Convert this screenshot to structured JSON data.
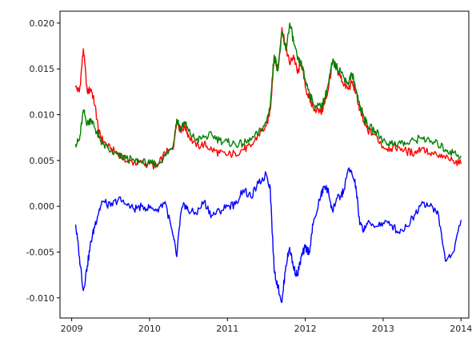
{
  "chart_data": {
    "type": "line",
    "title": "",
    "xlabel": "",
    "ylabel": "",
    "xlim": [
      2008.85,
      2014.1
    ],
    "ylim": [
      -0.0122,
      0.0213
    ],
    "grid": false,
    "legend": "none",
    "x_ticks": [
      2009,
      2010,
      2011,
      2012,
      2013,
      2014
    ],
    "x_tick_labels": [
      "2009",
      "2010",
      "2011",
      "2012",
      "2013",
      "2014"
    ],
    "y_ticks": [
      -0.01,
      -0.005,
      0.0,
      0.005,
      0.01,
      0.015,
      0.02
    ],
    "y_tick_labels": [
      "-0.010",
      "-0.005",
      "0.000",
      "0.005",
      "0.010",
      "0.015",
      "0.020"
    ],
    "series": [
      {
        "color": "#ff0000",
        "x": [
          2009.05,
          2009.1,
          2009.15,
          2009.2,
          2009.25,
          2009.3,
          2009.35,
          2009.4,
          2009.5,
          2009.6,
          2009.7,
          2009.8,
          2009.9,
          2010.0,
          2010.1,
          2010.2,
          2010.3,
          2010.35,
          2010.4,
          2010.45,
          2010.5,
          2010.6,
          2010.7,
          2010.8,
          2010.9,
          2011.0,
          2011.1,
          2011.2,
          2011.3,
          2011.4,
          2011.5,
          2011.55,
          2011.6,
          2011.65,
          2011.7,
          2011.75,
          2011.8,
          2011.85,
          2011.9,
          2011.95,
          2012.0,
          2012.05,
          2012.1,
          2012.2,
          2012.25,
          2012.3,
          2012.35,
          2012.4,
          2012.45,
          2012.5,
          2012.55,
          2012.6,
          2012.65,
          2012.7,
          2012.75,
          2012.8,
          2012.9,
          2013.0,
          2013.1,
          2013.2,
          2013.3,
          2013.4,
          2013.5,
          2013.6,
          2013.7,
          2013.8,
          2013.9,
          2014.0
        ],
        "values": [
          0.013,
          0.0125,
          0.0172,
          0.0125,
          0.0128,
          0.011,
          0.008,
          0.0072,
          0.0062,
          0.0058,
          0.0049,
          0.0048,
          0.0047,
          0.0046,
          0.0043,
          0.0058,
          0.0062,
          0.0095,
          0.0082,
          0.0088,
          0.0078,
          0.0065,
          0.0068,
          0.0062,
          0.0058,
          0.0056,
          0.0058,
          0.0062,
          0.0065,
          0.0078,
          0.0088,
          0.0105,
          0.0162,
          0.015,
          0.0195,
          0.0175,
          0.0155,
          0.0165,
          0.0145,
          0.0158,
          0.013,
          0.0118,
          0.0108,
          0.0102,
          0.0112,
          0.013,
          0.0158,
          0.015,
          0.0142,
          0.0133,
          0.0128,
          0.0135,
          0.0125,
          0.0105,
          0.0092,
          0.0083,
          0.0078,
          0.0065,
          0.0063,
          0.0065,
          0.006,
          0.0058,
          0.0064,
          0.0058,
          0.0055,
          0.0052,
          0.005,
          0.0046
        ]
      },
      {
        "color": "#008000",
        "x": [
          2009.05,
          2009.1,
          2009.15,
          2009.2,
          2009.25,
          2009.3,
          2009.35,
          2009.4,
          2009.5,
          2009.6,
          2009.7,
          2009.8,
          2009.9,
          2010.0,
          2010.1,
          2010.2,
          2010.3,
          2010.35,
          2010.4,
          2010.45,
          2010.5,
          2010.6,
          2010.7,
          2010.8,
          2010.9,
          2011.0,
          2011.1,
          2011.2,
          2011.3,
          2011.4,
          2011.5,
          2011.55,
          2011.6,
          2011.65,
          2011.7,
          2011.75,
          2011.8,
          2011.85,
          2011.9,
          2011.95,
          2012.0,
          2012.05,
          2012.1,
          2012.2,
          2012.25,
          2012.3,
          2012.35,
          2012.4,
          2012.45,
          2012.5,
          2012.55,
          2012.6,
          2012.65,
          2012.7,
          2012.75,
          2012.8,
          2012.9,
          2013.0,
          2013.1,
          2013.2,
          2013.3,
          2013.4,
          2013.5,
          2013.6,
          2013.7,
          2013.8,
          2013.9,
          2014.0
        ],
        "values": [
          0.0068,
          0.0072,
          0.0105,
          0.009,
          0.0095,
          0.0085,
          0.0075,
          0.0068,
          0.006,
          0.0055,
          0.0052,
          0.005,
          0.0048,
          0.0047,
          0.0046,
          0.0055,
          0.0065,
          0.0095,
          0.0085,
          0.0092,
          0.0082,
          0.0072,
          0.0075,
          0.0078,
          0.0072,
          0.007,
          0.0068,
          0.0068,
          0.0072,
          0.008,
          0.0092,
          0.011,
          0.0165,
          0.0148,
          0.019,
          0.017,
          0.02,
          0.018,
          0.016,
          0.0155,
          0.0138,
          0.0125,
          0.0112,
          0.0108,
          0.0118,
          0.0135,
          0.0158,
          0.0152,
          0.0148,
          0.014,
          0.0135,
          0.0145,
          0.0128,
          0.011,
          0.0098,
          0.0088,
          0.0082,
          0.0072,
          0.0068,
          0.007,
          0.0068,
          0.0072,
          0.0075,
          0.007,
          0.0068,
          0.0062,
          0.0058,
          0.0055
        ]
      },
      {
        "color": "#0000ff",
        "x": [
          2009.05,
          2009.1,
          2009.15,
          2009.2,
          2009.25,
          2009.3,
          2009.35,
          2009.4,
          2009.5,
          2009.6,
          2009.7,
          2009.8,
          2009.9,
          2010.0,
          2010.1,
          2010.2,
          2010.3,
          2010.35,
          2010.4,
          2010.45,
          2010.5,
          2010.6,
          2010.7,
          2010.8,
          2010.9,
          2011.0,
          2011.1,
          2011.2,
          2011.3,
          2011.4,
          2011.5,
          2011.55,
          2011.6,
          2011.65,
          2011.7,
          2011.75,
          2011.8,
          2011.85,
          2011.9,
          2011.95,
          2012.0,
          2012.05,
          2012.1,
          2012.2,
          2012.25,
          2012.3,
          2012.35,
          2012.4,
          2012.45,
          2012.5,
          2012.55,
          2012.6,
          2012.65,
          2012.7,
          2012.75,
          2012.8,
          2012.9,
          2013.0,
          2013.1,
          2013.2,
          2013.3,
          2013.4,
          2013.5,
          2013.6,
          2013.7,
          2013.8,
          2013.9,
          2014.0
        ],
        "values": [
          -0.002,
          -0.0055,
          -0.0092,
          -0.0065,
          -0.0038,
          -0.002,
          -0.0005,
          0.0005,
          0.0,
          0.0008,
          0.0002,
          -0.0003,
          0.0,
          -0.0002,
          -0.0003,
          0.0005,
          -0.0032,
          -0.0055,
          -0.0008,
          0.0002,
          -0.0005,
          -0.0008,
          0.0005,
          -0.001,
          -0.0005,
          0.0,
          0.0002,
          0.0018,
          0.001,
          0.0025,
          0.0035,
          0.002,
          -0.007,
          -0.0088,
          -0.0105,
          -0.0065,
          -0.0045,
          -0.0068,
          -0.0075,
          -0.0055,
          -0.0045,
          -0.005,
          -0.002,
          0.0012,
          0.0022,
          0.0015,
          -0.0005,
          0.0008,
          0.001,
          0.0018,
          0.004,
          0.0035,
          0.0022,
          -0.002,
          -0.0025,
          -0.0018,
          -0.0022,
          -0.0018,
          -0.002,
          -0.0028,
          -0.0022,
          -0.001,
          0.0005,
          0.0,
          -0.0005,
          -0.006,
          -0.005,
          -0.0015
        ]
      }
    ]
  }
}
